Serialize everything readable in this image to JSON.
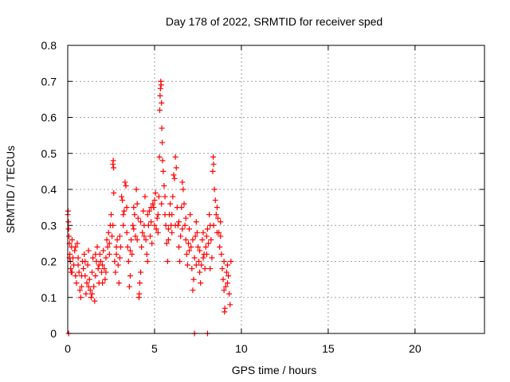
{
  "chart_data": {
    "type": "scatter",
    "title": "Day 178 of 2022, SRMTID for receiver sped",
    "xlabel": "GPS time / hours",
    "ylabel": "SRMTID / TECUs",
    "xlim": [
      0,
      24
    ],
    "ylim": [
      0,
      0.8
    ],
    "xticks": [
      0,
      5,
      10,
      15,
      20
    ],
    "yticks": [
      0,
      0.1,
      0.2,
      0.3,
      0.4,
      0.5,
      0.6,
      0.7,
      0.8
    ],
    "xtick_labels": [
      "0",
      "5",
      "10",
      "15",
      "20"
    ],
    "ytick_labels": [
      "0",
      "0.1",
      "0.2",
      "0.3",
      "0.4",
      "0.5",
      "0.6",
      "0.7",
      "0.8"
    ],
    "grid": true,
    "marker": "+",
    "color": "#ff0000",
    "series": [
      {
        "name": "SRMTID",
        "points": [
          [
            0.0,
            0.33
          ],
          [
            0.02,
            0.34
          ],
          [
            0.04,
            0.31
          ],
          [
            0.05,
            0.29
          ],
          [
            0.07,
            0.27
          ],
          [
            0.1,
            0.25
          ],
          [
            0.12,
            0.22
          ],
          [
            0.15,
            0.2
          ],
          [
            0.17,
            0.18
          ],
          [
            0.2,
            0.17
          ],
          [
            0.22,
            0.24
          ],
          [
            0.25,
            0.26
          ],
          [
            0.3,
            0.21
          ],
          [
            0.35,
            0.19
          ],
          [
            0.4,
            0.23
          ],
          [
            0.45,
            0.16
          ],
          [
            0.5,
            0.14
          ],
          [
            0.55,
            0.25
          ],
          [
            0.6,
            0.21
          ],
          [
            0.65,
            0.17
          ],
          [
            0.7,
            0.12
          ],
          [
            0.75,
            0.1
          ],
          [
            0.8,
            0.13
          ],
          [
            0.85,
            0.2
          ],
          [
            0.9,
            0.18
          ],
          [
            0.95,
            0.22
          ],
          [
            1.0,
            0.16
          ],
          [
            1.05,
            0.11
          ],
          [
            1.1,
            0.14
          ],
          [
            1.15,
            0.19
          ],
          [
            1.2,
            0.23
          ],
          [
            1.25,
            0.15
          ],
          [
            1.3,
            0.12
          ],
          [
            1.35,
            0.1
          ],
          [
            1.4,
            0.17
          ],
          [
            1.45,
            0.21
          ],
          [
            1.5,
            0.13
          ],
          [
            1.55,
            0.09
          ],
          [
            1.6,
            0.16
          ],
          [
            1.65,
            0.2
          ],
          [
            1.7,
            0.24
          ],
          [
            1.75,
            0.18
          ],
          [
            1.8,
            0.14
          ],
          [
            1.85,
            0.22
          ],
          [
            1.9,
            0.2
          ],
          [
            1.95,
            0.17
          ],
          [
            2.0,
            0.19
          ],
          [
            2.05,
            0.23
          ],
          [
            2.1,
            0.18
          ],
          [
            2.15,
            0.15
          ],
          [
            2.2,
            0.21
          ],
          [
            2.25,
            0.26
          ],
          [
            2.3,
            0.24
          ],
          [
            2.35,
            0.28
          ],
          [
            2.4,
            0.22
          ],
          [
            2.45,
            0.3
          ],
          [
            2.5,
            0.33
          ],
          [
            2.55,
            0.27
          ],
          [
            2.6,
            0.47
          ],
          [
            2.62,
            0.48
          ],
          [
            2.64,
            0.46
          ],
          [
            2.65,
            0.39
          ],
          [
            2.7,
            0.2
          ],
          [
            2.75,
            0.17
          ],
          [
            2.8,
            0.22
          ],
          [
            2.85,
            0.26
          ],
          [
            2.9,
            0.19
          ],
          [
            2.95,
            0.14
          ],
          [
            3.0,
            0.21
          ],
          [
            3.05,
            0.24
          ],
          [
            3.1,
            0.38
          ],
          [
            3.15,
            0.37
          ],
          [
            3.2,
            0.3
          ],
          [
            3.25,
            0.34
          ],
          [
            3.3,
            0.42
          ],
          [
            3.35,
            0.41
          ],
          [
            3.4,
            0.28
          ],
          [
            3.45,
            0.24
          ],
          [
            3.5,
            0.2
          ],
          [
            3.55,
            0.13
          ],
          [
            3.6,
            0.16
          ],
          [
            3.65,
            0.26
          ],
          [
            3.7,
            0.22
          ],
          [
            3.75,
            0.3
          ],
          [
            3.8,
            0.35
          ],
          [
            3.85,
            0.33
          ],
          [
            3.9,
            0.27
          ],
          [
            3.95,
            0.4
          ],
          [
            4.0,
            0.36
          ],
          [
            4.05,
            0.32
          ],
          [
            4.1,
            0.1
          ],
          [
            4.12,
            0.11
          ],
          [
            4.15,
            0.14
          ],
          [
            4.2,
            0.17
          ],
          [
            4.25,
            0.24
          ],
          [
            4.3,
            0.28
          ],
          [
            4.35,
            0.34
          ],
          [
            4.4,
            0.3
          ],
          [
            4.45,
            0.38
          ],
          [
            4.5,
            0.26
          ],
          [
            4.55,
            0.22
          ],
          [
            4.6,
            0.2
          ],
          [
            4.65,
            0.3
          ],
          [
            4.7,
            0.34
          ],
          [
            4.75,
            0.27
          ],
          [
            4.8,
            0.31
          ],
          [
            4.85,
            0.25
          ],
          [
            4.9,
            0.36
          ],
          [
            4.95,
            0.35
          ],
          [
            5.0,
            0.37
          ],
          [
            5.05,
            0.39
          ],
          [
            5.1,
            0.29
          ],
          [
            5.15,
            0.32
          ],
          [
            5.2,
            0.33
          ],
          [
            5.25,
            0.38
          ],
          [
            5.28,
            0.49
          ],
          [
            5.3,
            0.62
          ],
          [
            5.32,
            0.66
          ],
          [
            5.34,
            0.68
          ],
          [
            5.36,
            0.7
          ],
          [
            5.38,
            0.69
          ],
          [
            5.4,
            0.64
          ],
          [
            5.42,
            0.57
          ],
          [
            5.44,
            0.53
          ],
          [
            5.46,
            0.48
          ],
          [
            5.5,
            0.45
          ],
          [
            5.55,
            0.41
          ],
          [
            5.6,
            0.38
          ],
          [
            5.65,
            0.3
          ],
          [
            5.7,
            0.25
          ],
          [
            5.75,
            0.2
          ],
          [
            5.8,
            0.29
          ],
          [
            5.85,
            0.33
          ],
          [
            5.9,
            0.36
          ],
          [
            5.95,
            0.3
          ],
          [
            6.0,
            0.28
          ],
          [
            6.05,
            0.38
          ],
          [
            6.1,
            0.44
          ],
          [
            6.15,
            0.43
          ],
          [
            6.2,
            0.49
          ],
          [
            6.25,
            0.46
          ],
          [
            6.3,
            0.35
          ],
          [
            6.35,
            0.3
          ],
          [
            6.4,
            0.24
          ],
          [
            6.45,
            0.2
          ],
          [
            6.5,
            0.27
          ],
          [
            6.55,
            0.35
          ],
          [
            6.6,
            0.42
          ],
          [
            6.65,
            0.4
          ],
          [
            6.7,
            0.36
          ],
          [
            6.75,
            0.3
          ],
          [
            6.8,
            0.26
          ],
          [
            6.85,
            0.22
          ],
          [
            6.9,
            0.19
          ],
          [
            6.95,
            0.25
          ],
          [
            7.0,
            0.29
          ],
          [
            7.05,
            0.33
          ],
          [
            7.1,
            0.24
          ],
          [
            7.15,
            0.18
          ],
          [
            7.2,
            0.12
          ],
          [
            7.25,
            0.15
          ],
          [
            7.3,
            0.21
          ],
          [
            7.35,
            0.27
          ],
          [
            7.4,
            0.31
          ],
          [
            7.45,
            0.28
          ],
          [
            7.5,
            0.24
          ],
          [
            7.55,
            0.2
          ],
          [
            7.6,
            0.17
          ],
          [
            7.65,
            0.14
          ],
          [
            7.7,
            0.19
          ],
          [
            7.75,
            0.26
          ],
          [
            7.8,
            0.28
          ],
          [
            7.85,
            0.22
          ],
          [
            7.9,
            0.18
          ],
          [
            7.95,
            0.24
          ],
          [
            8.0,
            0.27
          ],
          [
            8.05,
            0.29
          ],
          [
            8.1,
            0.25
          ],
          [
            8.15,
            0.33
          ],
          [
            8.2,
            0.3
          ],
          [
            8.25,
            0.26
          ],
          [
            8.3,
            0.21
          ],
          [
            8.35,
            0.45
          ],
          [
            8.38,
            0.49
          ],
          [
            8.4,
            0.47
          ],
          [
            8.45,
            0.4
          ],
          [
            8.5,
            0.37
          ],
          [
            8.55,
            0.33
          ],
          [
            8.6,
            0.35
          ],
          [
            8.65,
            0.32
          ],
          [
            8.7,
            0.28
          ],
          [
            8.75,
            0.24
          ],
          [
            8.8,
            0.27
          ],
          [
            8.85,
            0.22
          ],
          [
            8.9,
            0.18
          ],
          [
            8.95,
            0.15
          ],
          [
            9.0,
            0.12
          ],
          [
            9.03,
            0.06
          ],
          [
            9.05,
            0.07
          ],
          [
            9.1,
            0.13
          ],
          [
            9.15,
            0.17
          ],
          [
            9.2,
            0.19
          ],
          [
            9.25,
            0.16
          ],
          [
            9.3,
            0.11
          ],
          [
            9.35,
            0.08
          ],
          [
            9.4,
            0.2
          ],
          [
            0.1,
            0.21
          ],
          [
            0.25,
            0.17
          ],
          [
            0.45,
            0.24
          ],
          [
            0.6,
            0.19
          ],
          [
            0.8,
            0.16
          ],
          [
            1.0,
            0.2
          ],
          [
            1.2,
            0.13
          ],
          [
            1.4,
            0.11
          ],
          [
            1.6,
            0.22
          ],
          [
            1.8,
            0.19
          ],
          [
            2.0,
            0.14
          ],
          [
            2.2,
            0.17
          ],
          [
            2.4,
            0.25
          ],
          [
            2.6,
            0.3
          ],
          [
            2.8,
            0.24
          ],
          [
            3.0,
            0.27
          ],
          [
            3.2,
            0.33
          ],
          [
            3.4,
            0.35
          ],
          [
            3.6,
            0.23
          ],
          [
            3.8,
            0.29
          ],
          [
            4.0,
            0.26
          ],
          [
            4.2,
            0.31
          ],
          [
            4.4,
            0.27
          ],
          [
            4.6,
            0.33
          ],
          [
            4.8,
            0.35
          ],
          [
            5.0,
            0.3
          ],
          [
            5.2,
            0.28
          ],
          [
            5.4,
            0.36
          ],
          [
            5.6,
            0.33
          ],
          [
            5.8,
            0.26
          ],
          [
            6.0,
            0.33
          ],
          [
            6.2,
            0.3
          ],
          [
            6.4,
            0.31
          ],
          [
            6.6,
            0.29
          ],
          [
            6.8,
            0.32
          ],
          [
            7.0,
            0.23
          ],
          [
            7.2,
            0.26
          ],
          [
            7.4,
            0.19
          ],
          [
            7.6,
            0.23
          ],
          [
            7.8,
            0.21
          ],
          [
            8.0,
            0.22
          ],
          [
            8.2,
            0.18
          ],
          [
            8.4,
            0.3
          ],
          [
            8.6,
            0.28
          ],
          [
            8.8,
            0.31
          ],
          [
            9.0,
            0.2
          ],
          [
            9.2,
            0.14
          ],
          [
            0.05,
            0.0
          ],
          [
            7.3,
            0.0
          ],
          [
            8.05,
            0.0
          ]
        ]
      }
    ]
  }
}
